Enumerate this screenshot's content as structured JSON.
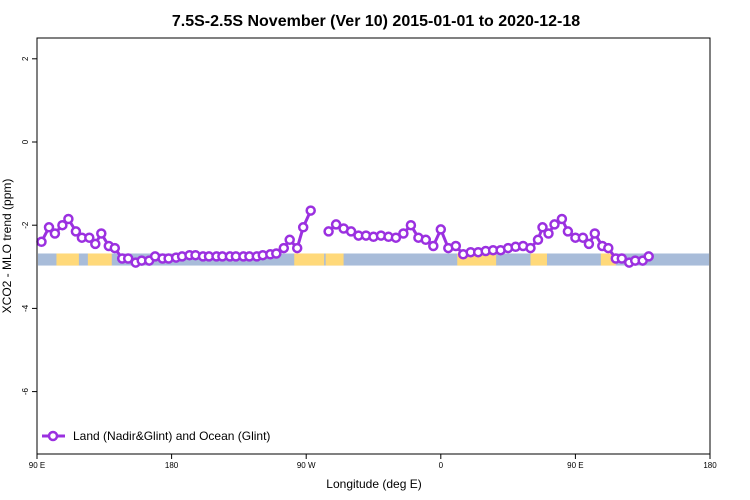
{
  "chart_data": {
    "type": "line",
    "title": "7.5S-2.5S November (Ver 10)   2015-01-01 to 2020-12-18",
    "xlabel": "Longitude (deg E)",
    "ylabel": "XCO2 - MLO trend (ppm)",
    "xlim": [
      90,
      540
    ],
    "ylim": [
      -7.5,
      2.5
    ],
    "x_ticks": [
      {
        "value": 90,
        "label": "90 E"
      },
      {
        "value": 180,
        "label": "180"
      },
      {
        "value": 270,
        "label": "90 W"
      },
      {
        "value": 360,
        "label": "0"
      },
      {
        "value": 450,
        "label": "90 E"
      },
      {
        "value": 540,
        "label": "180"
      }
    ],
    "y_ticks": [
      {
        "value": 2,
        "label": "2"
      },
      {
        "value": 0,
        "label": "0"
      },
      {
        "value": -2,
        "label": "-2"
      },
      {
        "value": -4,
        "label": "-4"
      },
      {
        "value": -6,
        "label": "-6"
      }
    ],
    "grid": false,
    "legend_position": "bottom-left",
    "series": [
      {
        "name": "Land (Nadir&Glint) and Ocean (Glint)",
        "color": "#9b30e0",
        "segments": [
          [
            [
              93,
              -2.4
            ],
            [
              98,
              -2.05
            ],
            [
              102,
              -2.2
            ],
            [
              107,
              -2.0
            ],
            [
              111,
              -1.85
            ],
            [
              116,
              -2.15
            ],
            [
              120,
              -2.3
            ],
            [
              125,
              -2.3
            ],
            [
              129,
              -2.45
            ],
            [
              133,
              -2.2
            ],
            [
              138,
              -2.5
            ],
            [
              142,
              -2.55
            ],
            [
              147,
              -2.8
            ],
            [
              151,
              -2.8
            ],
            [
              156,
              -2.9
            ],
            [
              160,
              -2.85
            ],
            [
              165,
              -2.85
            ],
            [
              169,
              -2.75
            ],
            [
              174,
              -2.8
            ],
            [
              178,
              -2.8
            ],
            [
              183,
              -2.78
            ],
            [
              187,
              -2.75
            ],
            [
              192,
              -2.72
            ],
            [
              196,
              -2.72
            ],
            [
              201,
              -2.75
            ],
            [
              205,
              -2.75
            ],
            [
              210,
              -2.75
            ],
            [
              214,
              -2.75
            ],
            [
              219,
              -2.75
            ],
            [
              223,
              -2.75
            ],
            [
              228,
              -2.75
            ],
            [
              232,
              -2.75
            ],
            [
              237,
              -2.75
            ],
            [
              241,
              -2.72
            ],
            [
              246,
              -2.7
            ],
            [
              250,
              -2.68
            ],
            [
              255,
              -2.55
            ],
            [
              259,
              -2.35
            ],
            [
              264,
              -2.55
            ],
            [
              268,
              -2.05
            ],
            [
              273,
              -1.65
            ]
          ],
          [
            [
              285,
              -2.15
            ],
            [
              290,
              -1.98
            ],
            [
              295,
              -2.08
            ],
            [
              300,
              -2.15
            ],
            [
              305,
              -2.25
            ],
            [
              310,
              -2.25
            ],
            [
              315,
              -2.28
            ],
            [
              320,
              -2.25
            ],
            [
              325,
              -2.28
            ],
            [
              330,
              -2.3
            ],
            [
              335,
              -2.2
            ],
            [
              340,
              -2.0
            ],
            [
              345,
              -2.3
            ],
            [
              350,
              -2.35
            ],
            [
              355,
              -2.5
            ],
            [
              360,
              -2.1
            ],
            [
              365,
              -2.55
            ],
            [
              370,
              -2.5
            ],
            [
              375,
              -2.7
            ],
            [
              380,
              -2.65
            ],
            [
              385,
              -2.65
            ],
            [
              390,
              -2.62
            ],
            [
              395,
              -2.6
            ],
            [
              400,
              -2.6
            ],
            [
              405,
              -2.55
            ],
            [
              410,
              -2.52
            ],
            [
              415,
              -2.5
            ],
            [
              420,
              -2.55
            ],
            [
              425,
              -2.35
            ],
            [
              428,
              -2.05
            ],
            [
              432,
              -2.2
            ],
            [
              436,
              -1.98
            ],
            [
              441,
              -1.85
            ],
            [
              445,
              -2.15
            ],
            [
              450,
              -2.3
            ],
            [
              455,
              -2.3
            ],
            [
              459,
              -2.45
            ],
            [
              463,
              -2.2
            ],
            [
              468,
              -2.5
            ],
            [
              472,
              -2.55
            ],
            [
              477,
              -2.8
            ],
            [
              481,
              -2.8
            ],
            [
              486,
              -2.9
            ],
            [
              490,
              -2.85
            ],
            [
              495,
              -2.85
            ],
            [
              499,
              -2.75
            ]
          ]
        ]
      }
    ],
    "land_ocean_strip": {
      "y_range": [
        -2.97,
        -2.68
      ],
      "ocean_color": "#a8bcd9",
      "land_color": "#ffd97a",
      "land_x_ranges": [
        [
          103,
          118
        ],
        [
          124,
          140
        ],
        [
          262,
          282
        ],
        [
          283,
          295
        ],
        [
          371,
          397
        ],
        [
          420,
          431
        ],
        [
          467,
          477
        ]
      ]
    }
  }
}
